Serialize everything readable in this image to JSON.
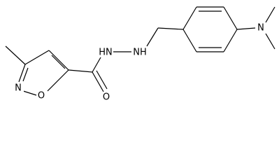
{
  "atoms": [
    {
      "label": "N"
    },
    {
      "label": "O"
    },
    {
      "label": "O"
    },
    {
      "label": "HN"
    },
    {
      "label": "NH"
    },
    {
      "label": "N"
    }
  ]
}
